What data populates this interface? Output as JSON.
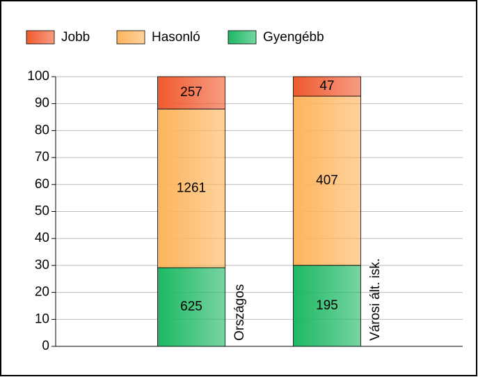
{
  "chart_data": {
    "type": "bar",
    "stacked": "percent",
    "categories": [
      "Országos",
      "Városi ált. isk."
    ],
    "series": [
      {
        "name": "Jobb",
        "color": "#f05a2e",
        "values": [
          257,
          47
        ]
      },
      {
        "name": "Hasonló",
        "color": "#fdb45c",
        "values": [
          1261,
          407
        ]
      },
      {
        "name": "Gyengébb",
        "color": "#1db863",
        "values": [
          625,
          195
        ]
      }
    ],
    "ylim": [
      0,
      100
    ],
    "yticks": [
      0,
      10,
      20,
      30,
      40,
      50,
      60,
      70,
      80,
      90,
      100
    ],
    "grid": true
  }
}
